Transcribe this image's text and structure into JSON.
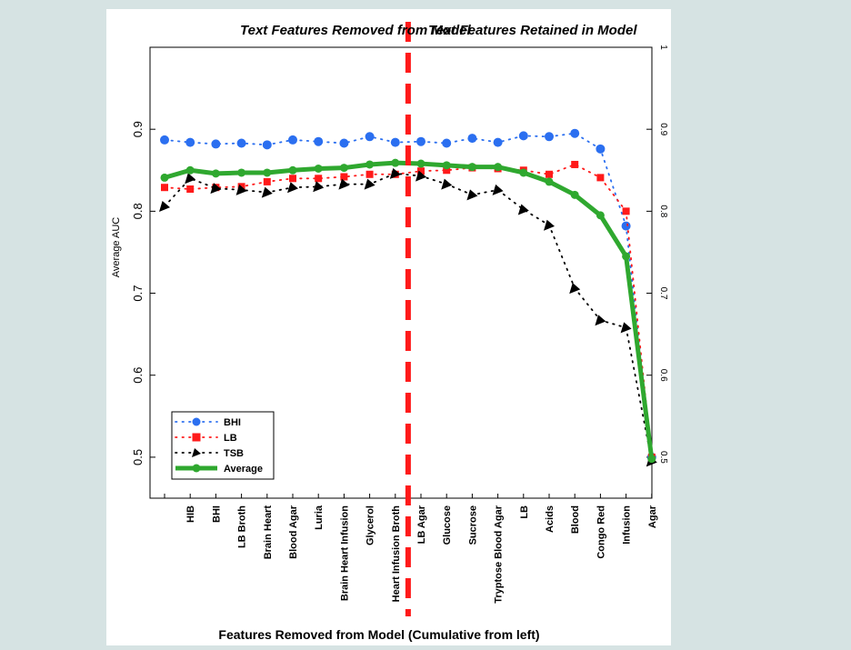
{
  "chart_data": {
    "type": "line",
    "title_left": "Text Features Removed from Model",
    "title_right": "Text Features Retained in Model",
    "xlabel": "Features Removed from Model (Cumulative from left)",
    "ylabel": "Average AUC",
    "ylim": [
      0.45,
      1.0
    ],
    "yticks": [
      "0.5",
      "0.6",
      "0.7",
      "0.8",
      "0.9"
    ],
    "yticks_right": [
      "0.5",
      "0.6",
      "0.7",
      "0.8",
      "0.9",
      "1"
    ],
    "categories": [
      "",
      "HIB",
      "BHI",
      "LB Broth",
      "Brain Heart",
      "Blood Agar",
      "Luria",
      "Brain Heart Infusion",
      "Glycerol",
      "Heart Infusion Broth",
      "LB Agar",
      "Glucose",
      "Sucrose",
      "Tryptose Blood Agar",
      "LB",
      "Acids",
      "Blood",
      "Congo Red",
      "Infusion",
      "Agar"
    ],
    "divider_after_index": 9,
    "legend_position": "lower-left",
    "series": [
      {
        "name": "BHI",
        "color": "#2b6ff0",
        "marker": "circle",
        "line": "dotted",
        "values": [
          0.887,
          0.884,
          0.882,
          0.883,
          0.881,
          0.887,
          0.885,
          0.883,
          0.891,
          0.884,
          0.885,
          0.883,
          0.889,
          0.884,
          0.892,
          0.891,
          0.895,
          0.876,
          0.782,
          0.5
        ]
      },
      {
        "name": "LB",
        "color": "#ff1a1a",
        "marker": "square",
        "line": "dotted",
        "values": [
          0.829,
          0.827,
          0.829,
          0.83,
          0.836,
          0.84,
          0.84,
          0.842,
          0.845,
          0.845,
          0.849,
          0.85,
          0.853,
          0.852,
          0.85,
          0.845,
          0.857,
          0.841,
          0.8,
          0.5
        ]
      },
      {
        "name": "TSB",
        "color": "#000000",
        "marker": "triangle",
        "line": "dotted",
        "values": [
          0.806,
          0.84,
          0.828,
          0.826,
          0.823,
          0.829,
          0.83,
          0.833,
          0.833,
          0.846,
          0.843,
          0.833,
          0.82,
          0.826,
          0.802,
          0.783,
          0.706,
          0.667,
          0.658,
          0.495
        ]
      },
      {
        "name": "Average",
        "color": "#2fa82f",
        "marker": "circle",
        "line": "solid",
        "values": [
          0.841,
          0.85,
          0.846,
          0.847,
          0.847,
          0.85,
          0.852,
          0.853,
          0.857,
          0.859,
          0.858,
          0.856,
          0.854,
          0.854,
          0.847,
          0.836,
          0.82,
          0.795,
          0.745,
          0.498
        ]
      }
    ]
  }
}
